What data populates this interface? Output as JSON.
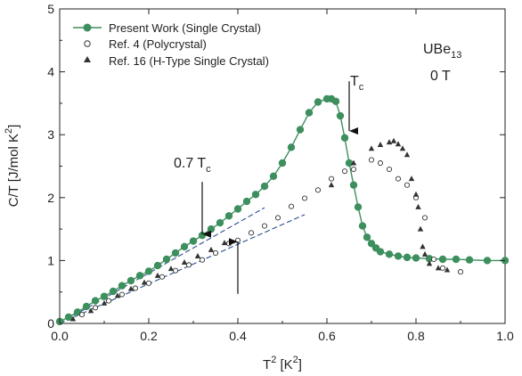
{
  "chart_data": {
    "type": "scatter",
    "x_title": {
      "base": "T",
      "sup": "2",
      "unit_open": " [K",
      "unit_sup": "2",
      "unit_close": "]"
    },
    "y_title": {
      "main": "C/T [J/mol K",
      "sup": "2",
      "close": "]"
    },
    "xlim": [
      0,
      1.0
    ],
    "ylim": [
      0,
      5
    ],
    "x_ticks": [
      "0.0",
      "0.2",
      "0.4",
      "0.6",
      "0.8",
      "1.0"
    ],
    "y_ticks": [
      "0",
      "1",
      "2",
      "3",
      "4",
      "5"
    ],
    "grid": false,
    "legend_position": "top-left",
    "colors": {
      "series_green": "#3d8f5e",
      "axis": "#222222",
      "fit_line": "#2b4d8f",
      "marker_dark": "#333333"
    },
    "sample": {
      "text": "UBe",
      "sub": "13"
    },
    "field": "0 T",
    "series": [
      {
        "name": "Present Work (Single Crystal)",
        "marker": "filled-circle",
        "connected": true,
        "x": [
          0.0,
          0.02,
          0.04,
          0.06,
          0.08,
          0.1,
          0.12,
          0.14,
          0.16,
          0.18,
          0.2,
          0.22,
          0.24,
          0.26,
          0.28,
          0.3,
          0.32,
          0.34,
          0.36,
          0.38,
          0.4,
          0.42,
          0.44,
          0.46,
          0.48,
          0.5,
          0.52,
          0.54,
          0.56,
          0.58,
          0.6,
          0.61,
          0.62,
          0.63,
          0.64,
          0.65,
          0.66,
          0.67,
          0.68,
          0.69,
          0.7,
          0.71,
          0.72,
          0.74,
          0.76,
          0.78,
          0.8,
          0.83,
          0.86,
          0.89,
          0.92,
          0.96,
          1.0
        ],
        "y": [
          0.03,
          0.1,
          0.18,
          0.27,
          0.36,
          0.43,
          0.51,
          0.6,
          0.68,
          0.76,
          0.83,
          0.92,
          1.02,
          1.12,
          1.22,
          1.31,
          1.4,
          1.5,
          1.6,
          1.71,
          1.82,
          1.94,
          2.05,
          2.18,
          2.34,
          2.55,
          2.8,
          3.08,
          3.35,
          3.52,
          3.57,
          3.57,
          3.53,
          3.3,
          2.95,
          2.55,
          2.2,
          1.85,
          1.55,
          1.37,
          1.27,
          1.2,
          1.14,
          1.1,
          1.07,
          1.05,
          1.04,
          1.03,
          1.02,
          1.02,
          1.01,
          1.0,
          1.0
        ]
      },
      {
        "name": "Ref. 4 (Polycrystal)",
        "marker": "open-circle",
        "connected": false,
        "x": [
          0.05,
          0.08,
          0.11,
          0.14,
          0.17,
          0.2,
          0.23,
          0.26,
          0.29,
          0.32,
          0.35,
          0.38,
          0.4,
          0.43,
          0.46,
          0.49,
          0.52,
          0.55,
          0.58,
          0.61,
          0.64,
          0.66,
          0.7,
          0.72,
          0.74,
          0.76,
          0.78,
          0.8,
          0.82,
          0.84,
          0.86,
          0.9
        ],
        "y": [
          0.14,
          0.25,
          0.36,
          0.46,
          0.56,
          0.64,
          0.74,
          0.84,
          0.93,
          1.01,
          1.12,
          1.27,
          1.32,
          1.44,
          1.55,
          1.68,
          1.86,
          1.99,
          2.12,
          2.3,
          2.42,
          2.45,
          2.6,
          2.55,
          2.45,
          2.3,
          2.2,
          2.0,
          1.68,
          1.02,
          0.88,
          0.82
        ]
      },
      {
        "name": "Ref. 16 (H-Type Single Crystal)",
        "marker": "filled-triangle",
        "connected": false,
        "x": [
          0.03,
          0.07,
          0.1,
          0.13,
          0.16,
          0.19,
          0.22,
          0.25,
          0.28,
          0.31,
          0.34,
          0.37,
          0.61,
          0.66,
          0.7,
          0.72,
          0.74,
          0.75,
          0.76,
          0.77,
          0.78,
          0.79,
          0.8,
          0.805,
          0.81,
          0.815,
          0.82,
          0.83,
          0.85,
          0.87
        ],
        "y": [
          0.07,
          0.2,
          0.32,
          0.44,
          0.55,
          0.65,
          0.76,
          0.87,
          0.97,
          1.07,
          1.17,
          1.28,
          2.2,
          2.55,
          2.78,
          2.84,
          2.88,
          2.9,
          2.85,
          2.78,
          2.68,
          2.3,
          2.05,
          1.85,
          1.5,
          1.22,
          1.1,
          0.95,
          0.88,
          0.85
        ]
      }
    ],
    "fit_lines": [
      {
        "x": [
          0.0,
          0.46
        ],
        "y": [
          0.0,
          1.84
        ]
      },
      {
        "x": [
          0.0,
          0.55
        ],
        "y": [
          0.0,
          1.73
        ]
      }
    ],
    "annotations": {
      "frac_label": "0.7 T",
      "frac_sub": "c",
      "tc_label": "T",
      "tc_sub": "c",
      "arrow_down_07tc": {
        "x": 0.32,
        "y_from": 2.25,
        "y_to": 1.42
      },
      "arrow_up_07tc": {
        "x": 0.4,
        "y_from": 0.47,
        "y_to": 1.3
      },
      "arrow_tc": {
        "x": 0.65,
        "y_from": 3.85,
        "y_to": 3.06
      }
    }
  }
}
